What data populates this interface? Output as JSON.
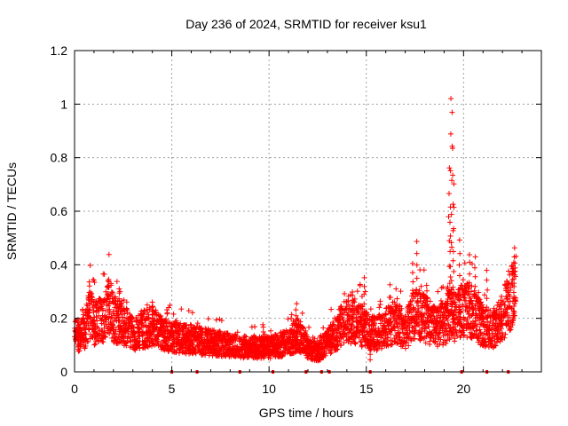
{
  "chart_data": {
    "type": "scatter",
    "title": "Day 236 of 2024, SRMTID for receiver ksu1",
    "xlabel": "GPS time / hours",
    "ylabel": "SRMTID / TECUs",
    "xlim": [
      0,
      24
    ],
    "ylim": [
      0,
      1.2
    ],
    "xticks": [
      0,
      5,
      10,
      15,
      20
    ],
    "xtick_labels": [
      "0",
      "5",
      "10",
      "15",
      "20"
    ],
    "yticks": [
      0,
      0.2,
      0.4,
      0.6,
      0.8,
      1.0,
      1.2
    ],
    "ytick_labels": [
      "0",
      "0.2",
      "0.4",
      "0.6",
      "0.8",
      "1",
      "1.2"
    ],
    "grid": true,
    "marker": "+",
    "color": "#ff0000",
    "series": [
      {
        "name": "SRMTID",
        "trend": [
          [
            0.0,
            0.13
          ],
          [
            0.5,
            0.15
          ],
          [
            0.8,
            0.22
          ],
          [
            1.0,
            0.18
          ],
          [
            1.5,
            0.2
          ],
          [
            1.8,
            0.25
          ],
          [
            2.0,
            0.2
          ],
          [
            2.5,
            0.18
          ],
          [
            3.0,
            0.14
          ],
          [
            3.5,
            0.16
          ],
          [
            4.0,
            0.17
          ],
          [
            4.5,
            0.14
          ],
          [
            5.0,
            0.13
          ],
          [
            6.0,
            0.12
          ],
          [
            7.0,
            0.11
          ],
          [
            8.0,
            0.1
          ],
          [
            9.0,
            0.09
          ],
          [
            10.0,
            0.09
          ],
          [
            11.0,
            0.11
          ],
          [
            11.5,
            0.14
          ],
          [
            12.0,
            0.09
          ],
          [
            12.5,
            0.07
          ],
          [
            13.0,
            0.11
          ],
          [
            13.5,
            0.15
          ],
          [
            14.0,
            0.2
          ],
          [
            15.0,
            0.16
          ],
          [
            15.5,
            0.14
          ],
          [
            16.0,
            0.17
          ],
          [
            16.5,
            0.19
          ],
          [
            17.0,
            0.15
          ],
          [
            17.5,
            0.22
          ],
          [
            18.0,
            0.2
          ],
          [
            18.5,
            0.17
          ],
          [
            19.0,
            0.18
          ],
          [
            19.3,
            0.22
          ],
          [
            19.6,
            0.2
          ],
          [
            20.0,
            0.24
          ],
          [
            20.5,
            0.22
          ],
          [
            21.0,
            0.17
          ],
          [
            21.5,
            0.16
          ],
          [
            22.0,
            0.2
          ],
          [
            22.3,
            0.27
          ],
          [
            22.7,
            0.3
          ]
        ],
        "spikes": [
          [
            0.75,
            0.34
          ],
          [
            1.75,
            0.35
          ],
          [
            2.3,
            0.31
          ],
          [
            4.0,
            0.26
          ],
          [
            9.7,
            0.18
          ],
          [
            11.4,
            0.23
          ],
          [
            14.3,
            0.3
          ],
          [
            14.9,
            0.35
          ],
          [
            15.2,
            0.05
          ],
          [
            17.4,
            0.4
          ],
          [
            17.6,
            0.49
          ],
          [
            18.1,
            0.32
          ],
          [
            19.25,
            0.76
          ],
          [
            19.35,
            1.02
          ],
          [
            19.4,
            0.97
          ],
          [
            19.45,
            0.84
          ],
          [
            19.5,
            0.7
          ],
          [
            19.3,
            0.56
          ],
          [
            19.8,
            0.49
          ],
          [
            20.3,
            0.44
          ],
          [
            20.6,
            0.43
          ],
          [
            21.2,
            0.38
          ],
          [
            22.6,
            0.46
          ]
        ],
        "zero_points": [
          5.0,
          6.3,
          8.5,
          10.2,
          11.9,
          12.7,
          13.1,
          15.2,
          19.9,
          21.2,
          22.3
        ]
      }
    ]
  }
}
